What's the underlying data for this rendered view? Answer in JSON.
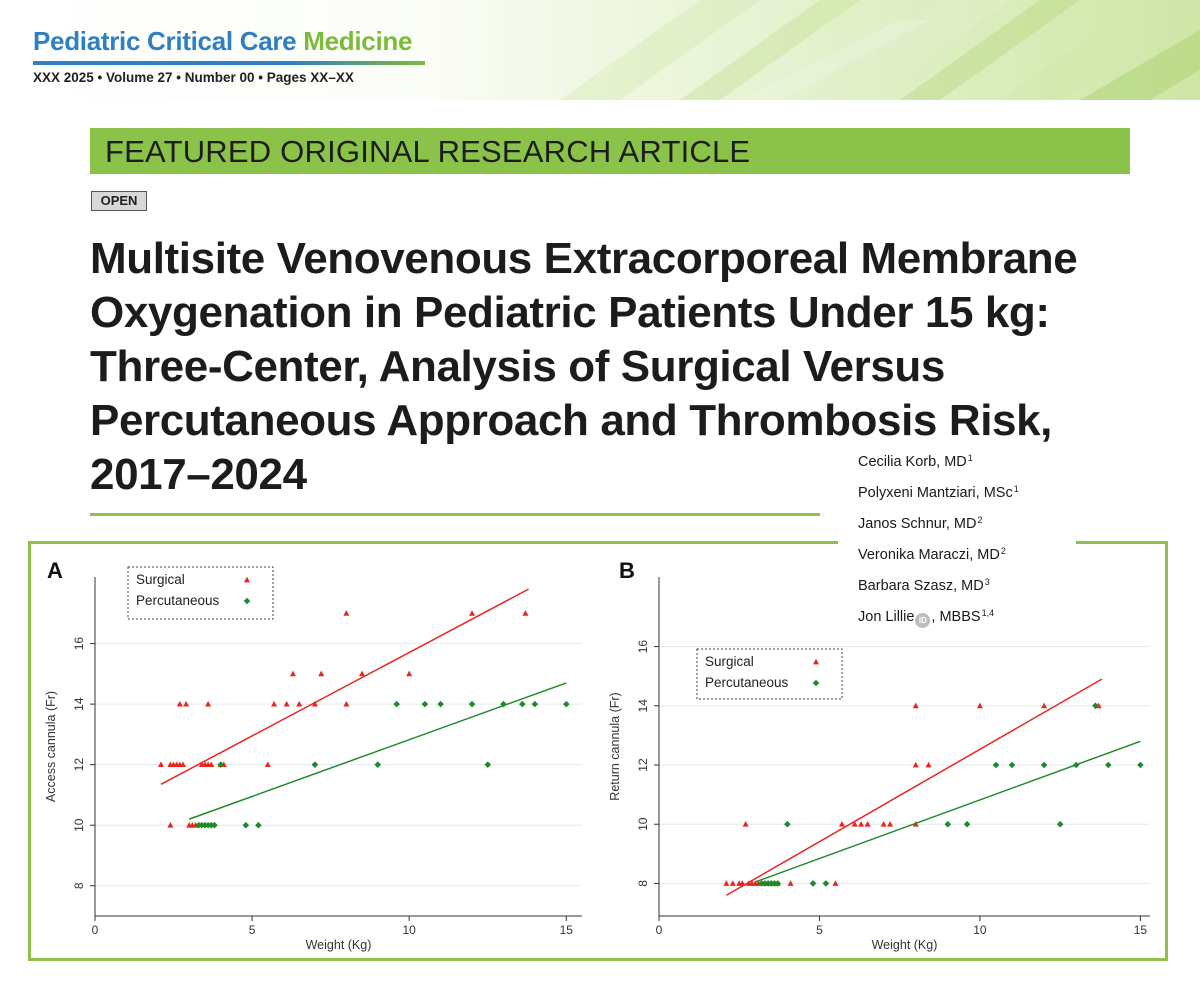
{
  "journal": {
    "name_part1": "Pediatric Critical Care",
    "name_part2": "Medicine",
    "issue_line": "XXX 2025 • Volume 27 • Number 00 • Pages XX–XX"
  },
  "section_label": "FEATURED ORIGINAL RESEARCH ARTICLE",
  "access_badge": "OPEN",
  "article_title": "Multisite Venovenous Extracorporeal Membrane Oxygenation in Pediatric Patients Under 15 kg: Three-Center, Analysis of Surgical Versus Percutaneous Approach and Thrombosis Risk, 2017–2024",
  "authors": [
    {
      "name": "Cecilia Korb, MD",
      "affil": "1"
    },
    {
      "name": "Polyxeni Mantziari, MSc",
      "affil": "1"
    },
    {
      "name": "Janos Schnur, MD",
      "affil": "2"
    },
    {
      "name": "Veronika Maraczi, MD",
      "affil": "2"
    },
    {
      "name": "Barbara Szasz, MD",
      "affil": "3"
    },
    {
      "name": "Jon Lillie",
      "suffix": ", MBBS",
      "affil": "1,4",
      "orcid_icon": "orcid-icon"
    }
  ],
  "colors": {
    "surgical": "#e8261e",
    "percutaneous": "#1e8a27",
    "accent_green": "#8bc34a",
    "accent_blue": "#2f7fc1"
  },
  "chart_data": [
    {
      "panel": "A",
      "type": "scatter",
      "xlabel": "Weight (Kg)",
      "ylabel": "Access cannula (Fr)",
      "xlim": [
        0,
        15.5
      ],
      "ylim": [
        7,
        18.2
      ],
      "xticks": [
        0,
        5,
        10,
        15
      ],
      "yticks": [
        8,
        10,
        12,
        14,
        16
      ],
      "grid": "horizontal",
      "legend_position": "top-left",
      "series": [
        {
          "name": "Surgical",
          "marker": "triangle",
          "points": [
            [
              2.1,
              12
            ],
            [
              2.4,
              10
            ],
            [
              2.4,
              12
            ],
            [
              2.5,
              12
            ],
            [
              2.6,
              12
            ],
            [
              2.7,
              12
            ],
            [
              2.7,
              14
            ],
            [
              2.8,
              12
            ],
            [
              2.9,
              14
            ],
            [
              3.0,
              10
            ],
            [
              3.1,
              10
            ],
            [
              3.2,
              10
            ],
            [
              3.4,
              12
            ],
            [
              3.5,
              12
            ],
            [
              3.6,
              12
            ],
            [
              3.7,
              12
            ],
            [
              3.6,
              14
            ],
            [
              4.0,
              12
            ],
            [
              4.1,
              12
            ],
            [
              5.5,
              12
            ],
            [
              5.7,
              14
            ],
            [
              6.1,
              14
            ],
            [
              6.3,
              15
            ],
            [
              6.5,
              14
            ],
            [
              7.0,
              14
            ],
            [
              7.2,
              15
            ],
            [
              8.0,
              14
            ],
            [
              8.0,
              17
            ],
            [
              8.5,
              15
            ],
            [
              10.0,
              15
            ],
            [
              12.0,
              17
            ],
            [
              13.7,
              17
            ]
          ],
          "fit_line": [
            [
              2.1,
              11.35
            ],
            [
              13.8,
              17.8
            ]
          ]
        },
        {
          "name": "Percutaneous",
          "marker": "diamond",
          "points": [
            [
              3.3,
              10
            ],
            [
              3.4,
              10
            ],
            [
              3.5,
              10
            ],
            [
              3.6,
              10
            ],
            [
              3.7,
              10
            ],
            [
              3.8,
              10
            ],
            [
              4.0,
              12
            ],
            [
              4.8,
              10
            ],
            [
              5.2,
              10
            ],
            [
              7.0,
              12
            ],
            [
              9.0,
              12
            ],
            [
              9.6,
              14
            ],
            [
              10.5,
              14
            ],
            [
              11.0,
              14
            ],
            [
              12.0,
              14
            ],
            [
              12.5,
              12
            ],
            [
              13.0,
              14
            ],
            [
              13.6,
              14
            ],
            [
              14.0,
              14
            ],
            [
              15.0,
              14
            ]
          ],
          "fit_line": [
            [
              3.0,
              10.2
            ],
            [
              15.0,
              14.7
            ]
          ]
        }
      ]
    },
    {
      "panel": "B",
      "type": "scatter",
      "xlabel": "Weight (Kg)",
      "ylabel": "Return cannula (Fr)",
      "xlim": [
        0,
        15.3
      ],
      "ylim": [
        6.9,
        18.35
      ],
      "xticks": [
        0,
        5,
        10,
        15
      ],
      "yticks": [
        8,
        10,
        12,
        14,
        16
      ],
      "grid": "horizontal",
      "legend_position": "top-left",
      "series": [
        {
          "name": "Surgical",
          "marker": "triangle",
          "points": [
            [
              2.1,
              8
            ],
            [
              2.3,
              8
            ],
            [
              2.5,
              8
            ],
            [
              2.6,
              8
            ],
            [
              2.7,
              10
            ],
            [
              2.8,
              8
            ],
            [
              2.9,
              8
            ],
            [
              3.0,
              8
            ],
            [
              3.1,
              8
            ],
            [
              3.3,
              8
            ],
            [
              3.5,
              8
            ],
            [
              3.7,
              8
            ],
            [
              4.1,
              8
            ],
            [
              5.5,
              8
            ],
            [
              5.7,
              10
            ],
            [
              6.1,
              10
            ],
            [
              6.3,
              10
            ],
            [
              6.5,
              10
            ],
            [
              7.0,
              10
            ],
            [
              7.2,
              10
            ],
            [
              8.0,
              10
            ],
            [
              8.0,
              12
            ],
            [
              8.0,
              14
            ],
            [
              8.4,
              12
            ],
            [
              10.0,
              14
            ],
            [
              12.0,
              14
            ],
            [
              13.7,
              14
            ]
          ],
          "fit_line": [
            [
              2.1,
              7.6
            ],
            [
              13.8,
              14.9
            ]
          ]
        },
        {
          "name": "Percutaneous",
          "marker": "diamond",
          "points": [
            [
              3.2,
              8
            ],
            [
              3.3,
              8
            ],
            [
              3.4,
              8
            ],
            [
              3.5,
              8
            ],
            [
              3.6,
              8
            ],
            [
              3.7,
              8
            ],
            [
              4.0,
              10
            ],
            [
              4.8,
              8
            ],
            [
              5.2,
              8
            ],
            [
              9.0,
              10
            ],
            [
              9.6,
              10
            ],
            [
              10.5,
              12
            ],
            [
              11.0,
              12
            ],
            [
              12.0,
              12
            ],
            [
              12.5,
              10
            ],
            [
              13.0,
              12
            ],
            [
              13.6,
              14
            ],
            [
              14.0,
              12
            ],
            [
              15.0,
              12
            ]
          ],
          "fit_line": [
            [
              3.0,
              8.05
            ],
            [
              15.0,
              12.8
            ]
          ]
        }
      ]
    }
  ]
}
